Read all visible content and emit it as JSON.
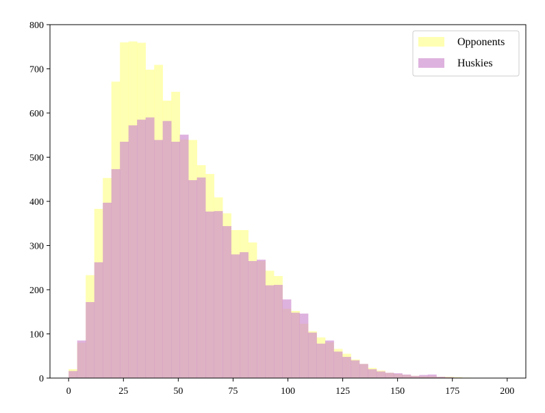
{
  "chart_data": {
    "type": "histogram",
    "title": "",
    "xlabel": "",
    "ylabel": "",
    "xlim": [
      -8.5,
      208.5
    ],
    "ylim": [
      0,
      800
    ],
    "xticks": [
      0,
      25,
      50,
      75,
      100,
      125,
      150,
      175,
      200
    ],
    "yticks": [
      0,
      100,
      200,
      300,
      400,
      500,
      600,
      700,
      800
    ],
    "grid": false,
    "legend_position": "top-right",
    "bin_edges": [
      0,
      3.9,
      7.8,
      11.7,
      15.6,
      19.5,
      23.4,
      27.3,
      31.2,
      35.1,
      39,
      42.9,
      46.8,
      50.7,
      54.6,
      58.5,
      62.4,
      66.3,
      70.2,
      74.1,
      78,
      81.9,
      85.8,
      89.7,
      93.6,
      97.5,
      101.4,
      105.3,
      109.2,
      113.1,
      117,
      120.9,
      124.8,
      128.7,
      132.6,
      136.5,
      140.4,
      144.3,
      148.2,
      152.1,
      156,
      159.9,
      163.8,
      167.7,
      171.6,
      175.5,
      179.4,
      183.3,
      187.2,
      191.1,
      195
    ],
    "series": [
      {
        "name": "Opponents",
        "color": "#ffff99",
        "opacity": 0.75,
        "values": [
          20,
          80,
          233,
          383,
          453,
          671,
          760,
          762,
          759,
          698,
          709,
          628,
          648,
          540,
          539,
          482,
          462,
          409,
          373,
          335,
          335,
          307,
          265,
          243,
          231,
          157,
          152,
          123,
          106,
          92,
          81,
          66,
          55,
          42,
          32,
          23,
          17,
          12,
          9,
          7,
          5,
          4,
          4,
          3,
          3,
          2,
          1,
          0,
          0,
          0
        ]
      },
      {
        "name": "Huskies",
        "color": "#cc88cc",
        "opacity": 0.65,
        "values": [
          16,
          85,
          172,
          262,
          397,
          473,
          535,
          572,
          585,
          590,
          539,
          582,
          535,
          551,
          448,
          454,
          377,
          378,
          344,
          280,
          285,
          265,
          268,
          210,
          211,
          178,
          148,
          146,
          103,
          78,
          85,
          60,
          48,
          40,
          32,
          20,
          15,
          12,
          11,
          8,
          5,
          7,
          8,
          3,
          2,
          1,
          0,
          0,
          0,
          0
        ]
      }
    ]
  }
}
